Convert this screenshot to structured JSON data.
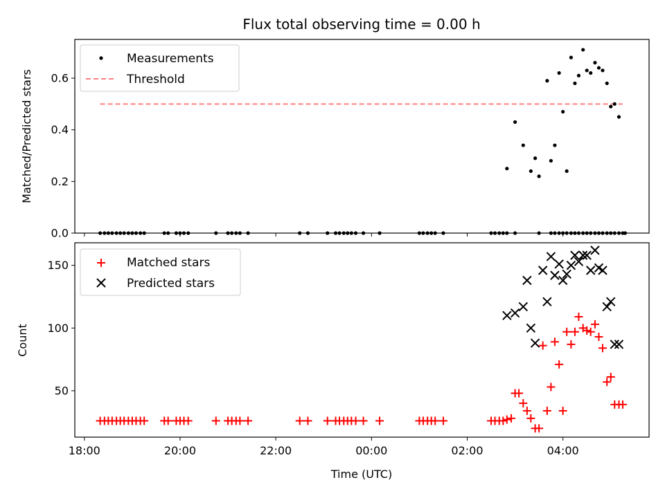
{
  "chart_data": [
    {
      "type": "scatter",
      "title": "Flux total observing time = 0.00 h",
      "xlabel": "",
      "ylabel": "Matched/Predicted stars",
      "xlim": [
        -0.2,
        11.8
      ],
      "ylim": [
        0,
        0.75
      ],
      "yticks": [
        0.0,
        0.2,
        0.4,
        0.6
      ],
      "ytick_labels": [
        "0.0",
        "0.2",
        "0.4",
        "0.6"
      ],
      "legend_location": "upper left",
      "series": [
        {
          "name": "Measurements",
          "marker": "dot",
          "color": "#000000",
          "x": [
            0.33,
            0.42,
            0.5,
            0.58,
            0.67,
            0.75,
            0.83,
            0.92,
            1.0,
            1.08,
            1.17,
            1.25,
            1.67,
            1.75,
            1.92,
            2.0,
            2.08,
            2.17,
            2.75,
            3.0,
            3.08,
            3.17,
            3.25,
            3.42,
            4.5,
            4.67,
            5.08,
            5.25,
            5.33,
            5.42,
            5.5,
            5.58,
            5.67,
            5.83,
            6.17,
            7.0,
            7.08,
            7.17,
            7.25,
            7.33,
            7.5,
            8.5,
            8.58,
            8.67,
            8.75,
            8.83,
            9.0,
            9.5,
            9.75,
            9.83,
            9.92,
            10.0,
            10.08,
            10.17,
            10.25,
            10.33,
            10.42,
            10.5,
            10.58,
            10.67,
            10.75,
            10.83,
            10.92,
            11.0,
            11.08,
            11.17,
            11.25
          ],
          "y": [
            0,
            0,
            0,
            0,
            0,
            0,
            0,
            0,
            0,
            0,
            0,
            0,
            0,
            0,
            0,
            0,
            0,
            0,
            0,
            0,
            0,
            0,
            0,
            0,
            0,
            0,
            0,
            0,
            0,
            0,
            0,
            0,
            0,
            0,
            0,
            0,
            0,
            0,
            0,
            0,
            0,
            0,
            0,
            0,
            0,
            0,
            0,
            0,
            0,
            0,
            0,
            0,
            0,
            0,
            0,
            0,
            0,
            0,
            0,
            0,
            0,
            0,
            0,
            0,
            0,
            0,
            0
          ],
          "x_active": [
            8.83,
            9.0,
            9.17,
            9.33,
            9.42,
            9.5,
            9.67,
            9.75,
            9.83,
            9.92,
            10.0,
            10.08,
            10.17,
            10.25,
            10.33,
            10.42,
            10.5,
            10.58,
            10.67,
            10.75,
            10.83,
            10.92,
            11.0,
            11.08,
            11.17
          ],
          "y_active": [
            0.25,
            0.43,
            0.34,
            0.24,
            0.29,
            0.22,
            0.59,
            0.28,
            0.34,
            0.62,
            0.47,
            0.24,
            0.68,
            0.58,
            0.61,
            0.71,
            0.63,
            0.62,
            0.66,
            0.64,
            0.63,
            0.58,
            0.49,
            0.5,
            0.45
          ],
          "x_zero_tail": [
            11.3
          ],
          "y_zero_tail": [
            0
          ]
        },
        {
          "name": "Threshold",
          "style": "dashed",
          "color": "#ff7f7f",
          "x": [
            0.33,
            11.25
          ],
          "y": [
            0.5,
            0.5
          ]
        }
      ]
    },
    {
      "type": "scatter",
      "title": "",
      "xlabel": "Time (UTC)",
      "ylabel": "Count",
      "xlim": [
        -0.2,
        11.8
      ],
      "ylim": [
        13,
        168
      ],
      "yticks": [
        50,
        100,
        150
      ],
      "ytick_labels": [
        "50",
        "100",
        "150"
      ],
      "xticks": [
        0,
        2,
        4,
        6,
        8,
        10
      ],
      "xtick_labels": [
        "18:00",
        "20:00",
        "22:00",
        "00:00",
        "02:00",
        "04:00"
      ],
      "legend_location": "upper left",
      "series": [
        {
          "name": "Matched stars",
          "marker": "plus",
          "color": "#ff0000",
          "x": [
            0.33,
            0.42,
            0.5,
            0.58,
            0.67,
            0.75,
            0.83,
            0.92,
            1.0,
            1.08,
            1.17,
            1.25,
            1.67,
            1.75,
            1.92,
            2.0,
            2.08,
            2.17,
            2.75,
            3.0,
            3.08,
            3.17,
            3.25,
            3.42,
            4.5,
            4.67,
            5.08,
            5.25,
            5.33,
            5.42,
            5.5,
            5.58,
            5.67,
            5.83,
            6.17,
            7.0,
            7.08,
            7.17,
            7.25,
            7.33,
            7.5,
            8.5,
            8.58,
            8.67,
            8.75,
            8.83,
            8.92,
            9.0,
            9.08,
            9.17,
            9.25,
            9.33,
            9.42,
            9.5,
            9.58,
            9.67,
            9.75,
            9.83,
            9.92,
            10.0,
            10.08,
            10.17,
            10.25,
            10.33,
            10.42,
            10.5,
            10.58,
            10.67,
            10.75,
            10.83,
            10.92,
            11.0,
            11.08,
            11.17,
            11.25
          ],
          "y": [
            26,
            26,
            26,
            26,
            26,
            26,
            26,
            26,
            26,
            26,
            26,
            26,
            26,
            26,
            26,
            26,
            26,
            26,
            26,
            26,
            26,
            26,
            26,
            26,
            26,
            26,
            26,
            26,
            26,
            26,
            26,
            26,
            26,
            26,
            26,
            26,
            26,
            26,
            26,
            26,
            26,
            26,
            26,
            26,
            26,
            27,
            28,
            48,
            48,
            40,
            34,
            28,
            20,
            20,
            86,
            34,
            53,
            89,
            71,
            34,
            97,
            87,
            97,
            109,
            100,
            98,
            97,
            103,
            93,
            84,
            57,
            61,
            39,
            39,
            39
          ],
          "x_fix_note": ""
        },
        {
          "name": "Predicted stars",
          "marker": "x",
          "color": "#000000",
          "x": [
            8.83,
            9.0,
            9.17,
            9.25,
            9.33,
            9.42,
            9.58,
            9.67,
            9.75,
            9.83,
            9.92,
            10.0,
            10.08,
            10.17,
            10.25,
            10.33,
            10.42,
            10.5,
            10.58,
            10.67,
            10.75,
            10.83,
            10.92,
            11.0,
            11.08,
            11.17
          ],
          "y": [
            110,
            112,
            117,
            138,
            100,
            88,
            146,
            121,
            157,
            142,
            151,
            138,
            143,
            150,
            158,
            153,
            158,
            158,
            146,
            162,
            148,
            146,
            117,
            121,
            87,
            87
          ]
        }
      ]
    }
  ]
}
